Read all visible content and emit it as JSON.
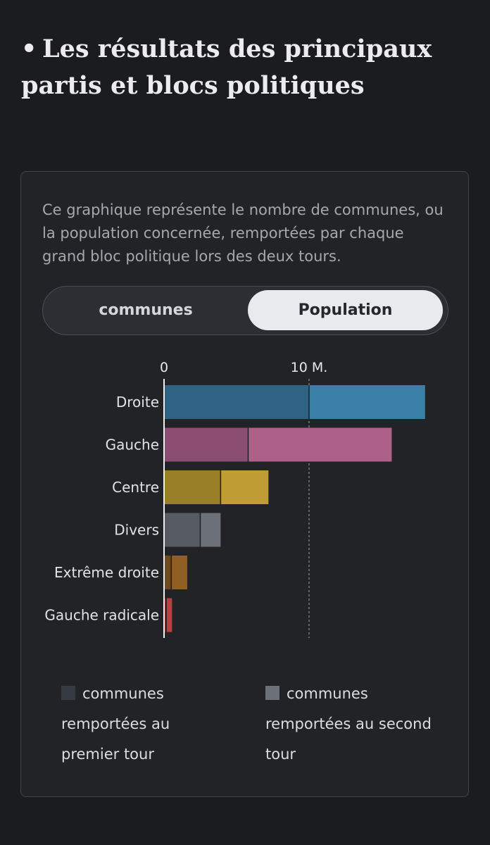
{
  "heading": {
    "bullet": "•",
    "title": "Les résultats des principaux partis et blocs politiques"
  },
  "card": {
    "description": "Ce graphique représente le nombre de communes, ou la population concernée, remportées par chaque grand bloc politique lors des deux tours.",
    "toggle": {
      "option_communes": "communes",
      "option_population": "Population",
      "selected": "Population"
    }
  },
  "legend": {
    "first_round": {
      "label": "communes remportées au premier tour",
      "color": "#363a42"
    },
    "second_round": {
      "label": "communes remportées au second tour",
      "color": "#6b7079"
    }
  },
  "chart_data": {
    "type": "bar",
    "orientation": "horizontal",
    "stacked": true,
    "x_ticks": [
      "0",
      "10 M."
    ],
    "xlim": [
      0,
      18000000
    ],
    "reference_line": 10000000,
    "categories": [
      "Droite",
      "Gauche",
      "Centre",
      "Divers",
      "Extrême droite",
      "Gauche radicale"
    ],
    "colors": [
      {
        "first": "#2e6383",
        "second": "#3a7fa8"
      },
      {
        "first": "#8b4d72",
        "second": "#ad6189"
      },
      {
        "first": "#998028",
        "second": "#bf9c34"
      },
      {
        "first": "#555a63",
        "second": "#6b7079"
      },
      {
        "first": "#6e4a1f",
        "second": "#8f5f24"
      },
      {
        "first": "#8a2a2c",
        "second": "#b8403e"
      }
    ],
    "series": [
      {
        "name": "communes remportées au premier tour",
        "values": [
          10000000,
          5800000,
          3900000,
          2500000,
          500000,
          150000
        ]
      },
      {
        "name": "communes remportées au second tour",
        "values": [
          8000000,
          9900000,
          3300000,
          1400000,
          1100000,
          400000
        ]
      }
    ]
  }
}
